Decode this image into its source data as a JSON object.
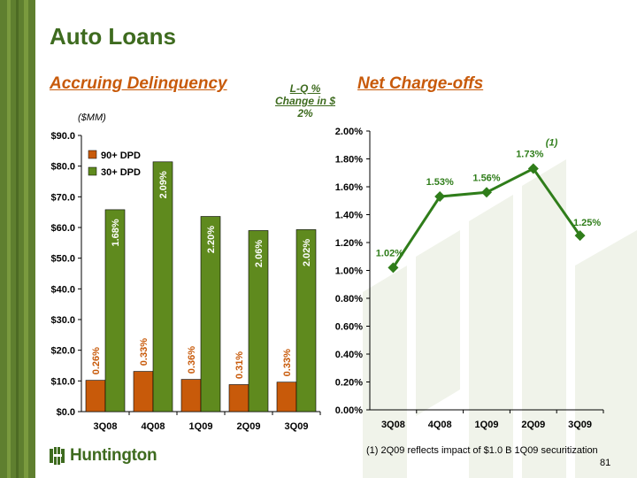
{
  "title": "Auto Loans",
  "section_left": "Accruing Delinquency",
  "section_right": "Net Charge-offs",
  "lq_change": {
    "line1": "L-Q %",
    "line2": "Change in $",
    "value": "2%"
  },
  "units_label": "($MM)",
  "footnote": "(1) 2Q09 reflects impact of $1.0 B 1Q09 securitization",
  "footnote_marker": "(1)",
  "page_number": "81",
  "logo_text": "Huntington",
  "colors": {
    "sidebar": "#5f7f2f",
    "title": "#3e6b1f",
    "accent_orange": "#c85a0a",
    "bar_90": "#c85a0a",
    "bar_30": "#5f8a1e",
    "line": "#2f7d1a",
    "watermark": "#f0f3ea"
  },
  "chart_data": [
    {
      "type": "bar",
      "categories": [
        "3Q08",
        "4Q08",
        "1Q09",
        "2Q09",
        "3Q09"
      ],
      "series": [
        {
          "name": "90+ DPD",
          "values": [
            10.2,
            13.1,
            10.5,
            8.8,
            9.6
          ],
          "labels": [
            "0.26%",
            "0.33%",
            "0.36%",
            "0.31%",
            "0.33%"
          ]
        },
        {
          "name": "30+ DPD",
          "values": [
            65.8,
            81.4,
            63.6,
            59.0,
            59.3
          ],
          "labels": [
            "1.68%",
            "2.09%",
            "2.20%",
            "2.06%",
            "2.02%"
          ]
        }
      ],
      "ylim": [
        0,
        90
      ],
      "yticks": [
        0,
        10,
        20,
        30,
        40,
        50,
        60,
        70,
        80,
        90
      ],
      "ytick_labels": [
        "$0.0",
        "$10.0",
        "$20.0",
        "$30.0",
        "$40.0",
        "$50.0",
        "$60.0",
        "$70.0",
        "$80.0",
        "$90.0"
      ],
      "legend_position": "top-left",
      "grid": false
    },
    {
      "type": "line",
      "categories": [
        "3Q08",
        "4Q08",
        "1Q09",
        "2Q09",
        "3Q09"
      ],
      "values": [
        1.02,
        1.53,
        1.56,
        1.73,
        1.25
      ],
      "labels": [
        "1.02%",
        "1.53%",
        "1.56%",
        "1.73%",
        "1.25%"
      ],
      "ylim": [
        0,
        2.0
      ],
      "yticks": [
        0,
        0.2,
        0.4,
        0.6,
        0.8,
        1.0,
        1.2,
        1.4,
        1.6,
        1.8,
        2.0
      ],
      "ytick_labels": [
        "0.00%",
        "0.20%",
        "0.40%",
        "0.60%",
        "0.80%",
        "1.00%",
        "1.20%",
        "1.40%",
        "1.60%",
        "1.80%",
        "2.00%"
      ],
      "grid": false
    }
  ]
}
